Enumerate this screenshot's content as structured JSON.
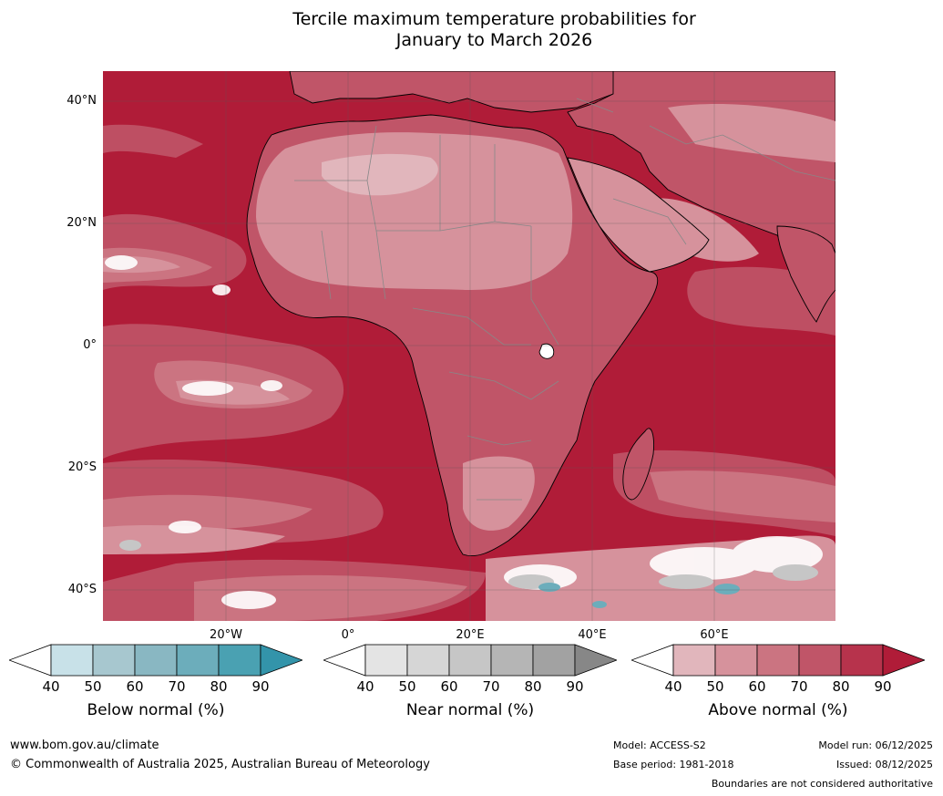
{
  "title": {
    "line1": "Tercile maximum temperature probabilities for",
    "line2": "January to March 2026"
  },
  "map": {
    "latitude_labels": [
      "40°N",
      "20°N",
      "0°",
      "20°S",
      "40°S"
    ],
    "longitude_labels": [
      "20°W",
      "0°",
      "20°E",
      "40°E",
      "60°E"
    ],
    "colors": {
      "ocean_base": "#b01c38",
      "land_base": "#d28995",
      "boundary": "#888888",
      "coast": "#000000"
    }
  },
  "legend": [
    {
      "name": "below",
      "title": "Below normal (%)",
      "ticks": [
        "40",
        "50",
        "60",
        "70",
        "80",
        "90"
      ],
      "colors": [
        "#ffffff",
        "#c8e1e8",
        "#a7c7cf",
        "#89b7c2",
        "#6cadbb",
        "#4aa1b2",
        "#3394aa"
      ]
    },
    {
      "name": "near",
      "title": "Near normal (%)",
      "ticks": [
        "40",
        "50",
        "60",
        "70",
        "80",
        "90"
      ],
      "colors": [
        "#ffffff",
        "#e4e4e4",
        "#d6d6d6",
        "#c6c6c6",
        "#b5b5b5",
        "#a2a2a2",
        "#878787"
      ]
    },
    {
      "name": "above",
      "title": "Above normal (%)",
      "ticks": [
        "40",
        "50",
        "60",
        "70",
        "80",
        "90"
      ],
      "colors": [
        "#ffffff",
        "#e1b6bc",
        "#d6929c",
        "#cb7481",
        "#c05568",
        "#b7334c",
        "#b01c38"
      ]
    }
  ],
  "footer": {
    "website": "www.bom.gov.au/climate",
    "copyright": "© Commonwealth of Australia 2025, Australian Bureau of Meteorology",
    "model": "Model: ACCESS-S2",
    "base_period": "Base period: 1981-2018",
    "model_run": "Model run: 06/12/2025",
    "issued": "Issued: 08/12/2025",
    "disclaimer": "Boundaries are not considered authoritative"
  }
}
